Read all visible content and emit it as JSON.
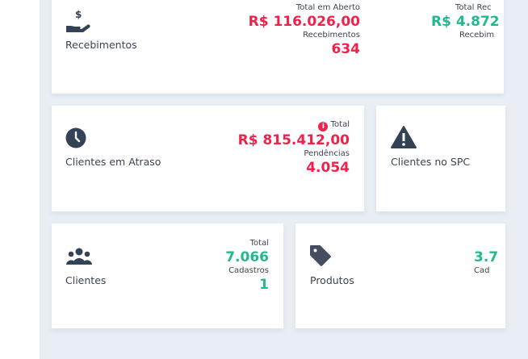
{
  "colors": {
    "negative": "#f0224b",
    "positive": "#22b98f",
    "text": "#3b4352"
  },
  "cards": {
    "recebimentos": {
      "title": "Recebimentos",
      "icon": "hand-dollar-icon",
      "open_label": "Total em Aberto",
      "open_value": "R$ 116.026,00",
      "count_label": "Recebimentos",
      "count_value": "634",
      "received_label": "Total Rec",
      "received_value": "R$ 4.872",
      "received_count_label": "Recebim"
    },
    "atraso": {
      "title": "Clientes em Atraso",
      "icon": "clock-icon",
      "total_label": "Total",
      "total_value": "R$ 815.412,00",
      "count_label": "Pendências",
      "count_value": "4.054"
    },
    "spc": {
      "title": "Clientes no SPC",
      "icon": "warning-icon"
    },
    "clientes": {
      "title": "Clientes",
      "icon": "users-icon",
      "total_label": "Total",
      "total_value": "7.066",
      "count_label": "Cadastros",
      "count_value": "1"
    },
    "produtos": {
      "title": "Produtos",
      "icon": "tag-icon",
      "total_value": "3.7",
      "count_label": "Cad"
    }
  }
}
